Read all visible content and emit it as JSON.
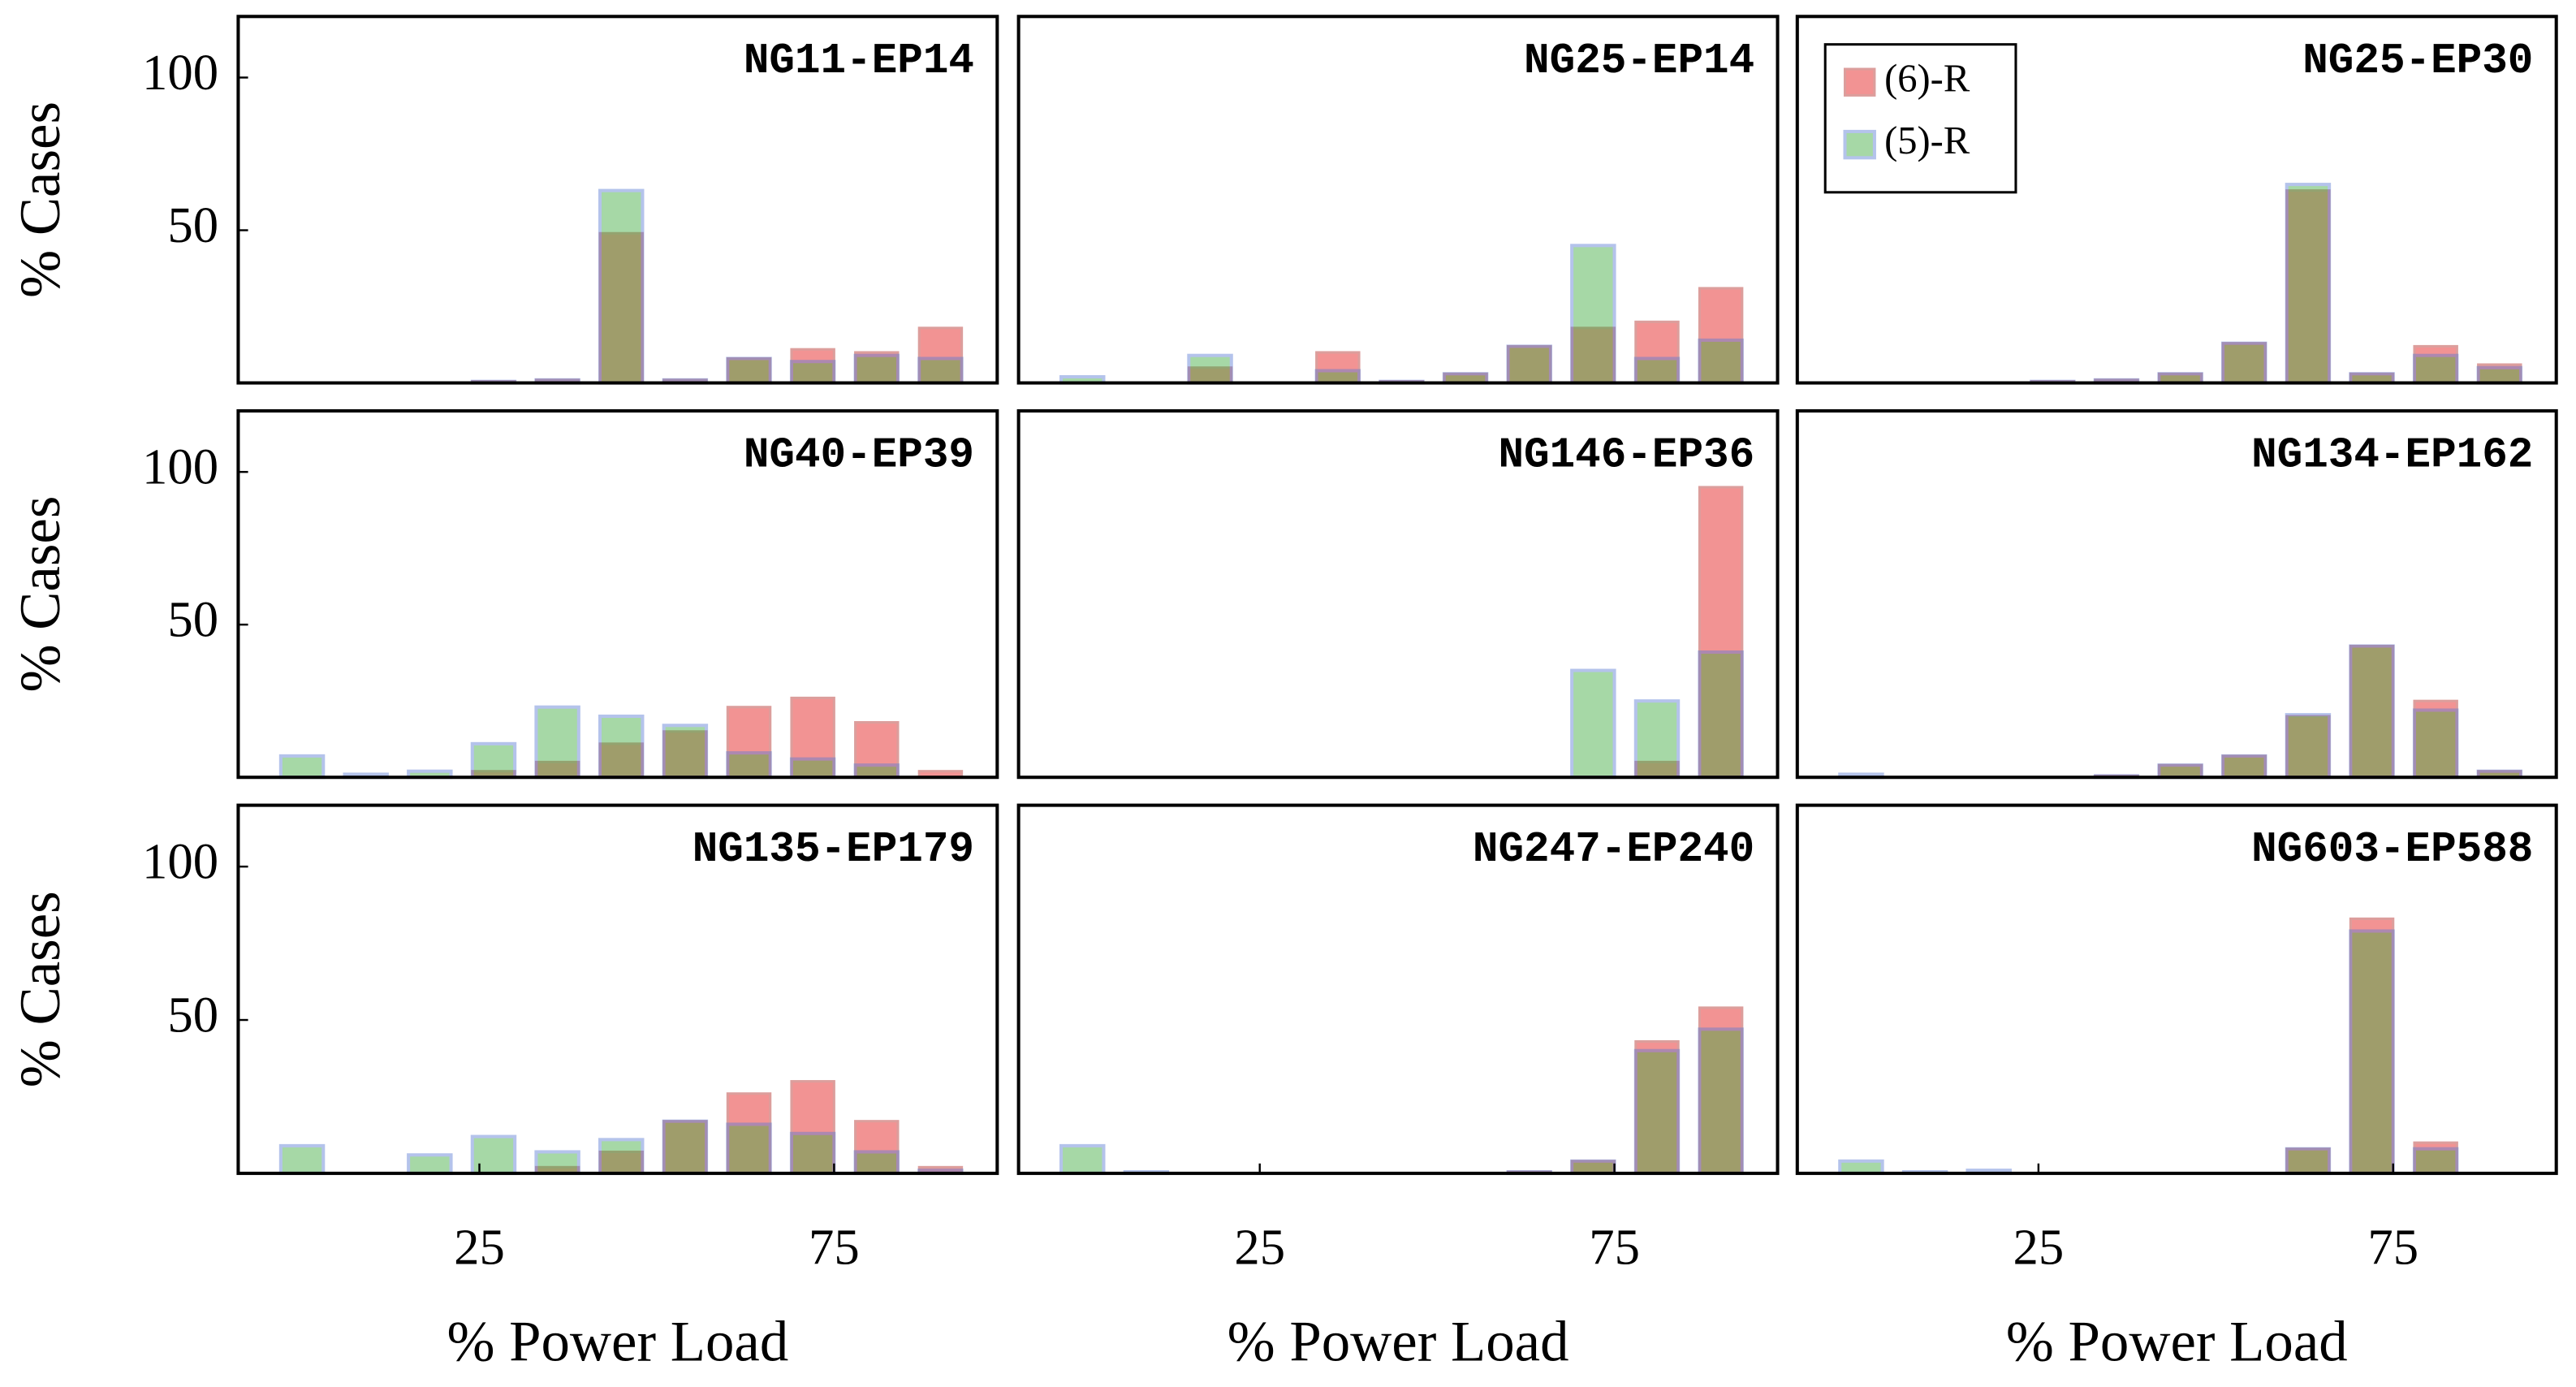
{
  "chart_data": [
    {
      "type": "bar",
      "title": "NG11-EP14",
      "ylabel": "% Cases",
      "x": [
        0,
        9,
        18,
        27,
        36,
        45,
        54,
        63,
        72,
        81,
        90
      ],
      "series": [
        {
          "color": "#e83c3c",
          "values": [
            0,
            0,
            0,
            0.5,
            1,
            49,
            1,
            8,
            11,
            10,
            18
          ]
        },
        {
          "color": "#3caa3c",
          "values": [
            0,
            0,
            0,
            0.5,
            1,
            63,
            1,
            8,
            7,
            9,
            8
          ]
        }
      ],
      "xlim": [
        -9,
        98
      ],
      "ylim": [
        0,
        120
      ],
      "yticks": [
        50,
        100
      ]
    },
    {
      "type": "bar",
      "title": "NG25-EP14",
      "x": [
        0,
        9,
        18,
        27,
        36,
        45,
        54,
        63,
        72,
        81,
        90
      ],
      "series": [
        {
          "color": "#e83c3c",
          "values": [
            0,
            0,
            5,
            0,
            10,
            0.5,
            3,
            12,
            18,
            20,
            31
          ]
        },
        {
          "color": "#3caa3c",
          "values": [
            2,
            0,
            9,
            0,
            4,
            0.5,
            3,
            12,
            45,
            8,
            14
          ]
        }
      ],
      "xlim": [
        -9,
        98
      ],
      "ylim": [
        0,
        120
      ]
    },
    {
      "type": "bar",
      "title": "NG25-EP30",
      "legend": "upper left",
      "x": [
        0,
        9,
        18,
        27,
        36,
        45,
        54,
        63,
        72,
        81,
        90
      ],
      "series": [
        {
          "name": "(6)-R",
          "color": "#e83c3c",
          "values": [
            0,
            0,
            0,
            0.5,
            1,
            3,
            13,
            63,
            3,
            12,
            6
          ]
        },
        {
          "name": "(5)-R",
          "color": "#3caa3c",
          "values": [
            0,
            0,
            0,
            0.5,
            1,
            3,
            13,
            65,
            3,
            9,
            5
          ]
        }
      ],
      "xlim": [
        -9,
        98
      ],
      "ylim": [
        0,
        120
      ]
    },
    {
      "type": "bar",
      "title": "NG40-EP39",
      "ylabel": "% Cases",
      "x": [
        0,
        9,
        18,
        27,
        36,
        45,
        54,
        63,
        72,
        81,
        90
      ],
      "series": [
        {
          "color": "#e83c3c",
          "values": [
            0,
            0,
            0,
            2,
            5,
            11,
            15,
            23,
            26,
            18,
            2
          ]
        },
        {
          "color": "#3caa3c",
          "values": [
            7,
            1,
            2,
            11,
            23,
            20,
            17,
            8,
            6,
            4,
            0
          ]
        }
      ],
      "xlim": [
        -9,
        98
      ],
      "ylim": [
        0,
        120
      ],
      "yticks": [
        50,
        100
      ]
    },
    {
      "type": "bar",
      "title": "NG146-EP36",
      "x": [
        0,
        9,
        18,
        27,
        36,
        45,
        54,
        63,
        72,
        81,
        90
      ],
      "series": [
        {
          "color": "#e83c3c",
          "values": [
            0,
            0,
            0,
            0,
            0,
            0,
            0,
            0,
            0,
            5,
            95
          ]
        },
        {
          "color": "#3caa3c",
          "values": [
            0,
            0,
            0,
            0,
            0,
            0,
            0,
            0,
            35,
            25,
            41
          ]
        }
      ],
      "xlim": [
        -9,
        98
      ],
      "ylim": [
        0,
        120
      ]
    },
    {
      "type": "bar",
      "title": "NG134-EP162",
      "x": [
        0,
        9,
        18,
        27,
        36,
        45,
        54,
        63,
        72,
        81,
        90
      ],
      "series": [
        {
          "color": "#e83c3c",
          "values": [
            0,
            0,
            0,
            0,
            0.5,
            4,
            7,
            20,
            43,
            25,
            2
          ]
        },
        {
          "color": "#3caa3c",
          "values": [
            1,
            0,
            0,
            0,
            0.5,
            4,
            7,
            20.5,
            43,
            22,
            2
          ]
        }
      ],
      "xlim": [
        -9,
        98
      ],
      "ylim": [
        0,
        120
      ]
    },
    {
      "type": "bar",
      "title": "NG135-EP179",
      "ylabel": "% Cases",
      "xlabel": "% Power Load",
      "x": [
        0,
        9,
        18,
        27,
        36,
        45,
        54,
        63,
        72,
        81,
        90
      ],
      "series": [
        {
          "color": "#e83c3c",
          "values": [
            0,
            0,
            0,
            0,
            2,
            7,
            17,
            26,
            30,
            17,
            2
          ]
        },
        {
          "color": "#3caa3c",
          "values": [
            9,
            0,
            6,
            12,
            7,
            11,
            17,
            16,
            13,
            7,
            1
          ]
        }
      ],
      "xlim": [
        -9,
        98
      ],
      "ylim": [
        0,
        120
      ],
      "xticks": [
        25,
        75
      ],
      "yticks": [
        50,
        100
      ]
    },
    {
      "type": "bar",
      "title": "NG247-EP240",
      "xlabel": "% Power Load",
      "x": [
        0,
        9,
        18,
        27,
        36,
        45,
        54,
        63,
        72,
        81,
        90
      ],
      "series": [
        {
          "color": "#e83c3c",
          "values": [
            0,
            0,
            0,
            0,
            0,
            0,
            0,
            0.5,
            4,
            43,
            54
          ]
        },
        {
          "color": "#3caa3c",
          "values": [
            9,
            0.5,
            0,
            0,
            0,
            0,
            0,
            0.5,
            4,
            40,
            47
          ]
        }
      ],
      "xlim": [
        -9,
        98
      ],
      "ylim": [
        0,
        120
      ],
      "xticks": [
        25,
        75
      ]
    },
    {
      "type": "bar",
      "title": "NG603-EP588",
      "xlabel": "% Power Load",
      "x": [
        0,
        9,
        18,
        27,
        36,
        45,
        54,
        63,
        72,
        81,
        90
      ],
      "series": [
        {
          "color": "#e83c3c",
          "values": [
            0,
            0,
            0,
            0,
            0,
            0,
            0,
            8,
            83,
            10,
            0
          ]
        },
        {
          "color": "#3caa3c",
          "values": [
            4,
            0.5,
            1,
            0,
            0,
            0,
            0,
            8,
            79,
            8,
            0
          ]
        }
      ],
      "xlim": [
        -9,
        98
      ],
      "ylim": [
        0,
        120
      ],
      "xticks": [
        25,
        75
      ]
    }
  ]
}
